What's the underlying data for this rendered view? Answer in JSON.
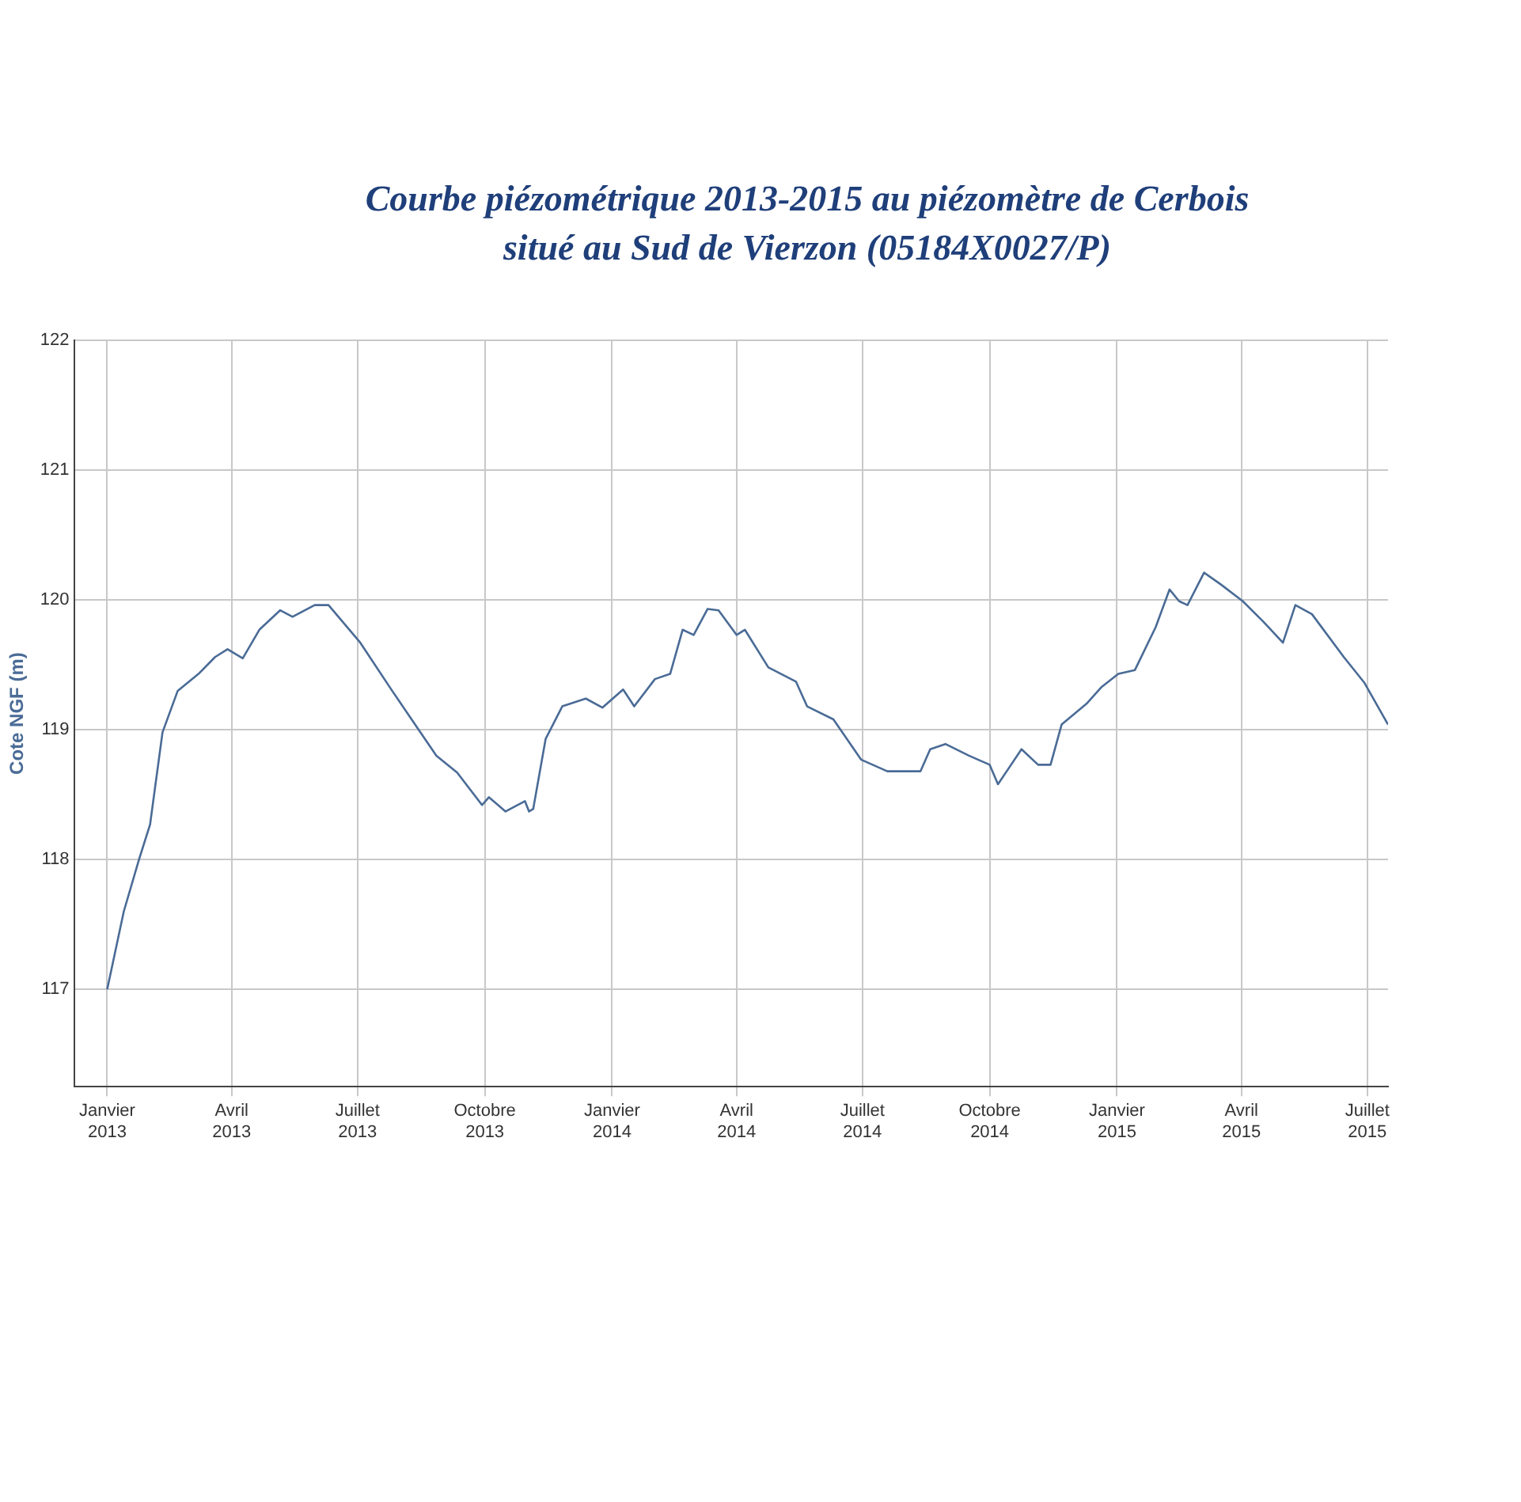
{
  "chart_data": {
    "type": "line",
    "title": "Courbe piézométrique 2013-2015 au piézomètre de Cerbois\nsitué au Sud de Vierzon (05184X0027/P)",
    "ylabel": "Cote NGF (m)",
    "x": [
      "2013-01-01",
      "2013-01-13",
      "2013-01-24",
      "2013-02-01",
      "2013-02-10",
      "2013-02-21",
      "2013-03-08",
      "2013-03-20",
      "2013-03-29",
      "2013-04-09",
      "2013-04-21",
      "2013-05-06",
      "2013-05-15",
      "2013-05-31",
      "2013-06-10",
      "2013-07-03",
      "2013-07-26",
      "2013-08-11",
      "2013-08-27",
      "2013-09-11",
      "2013-09-29",
      "2013-10-04",
      "2013-10-16",
      "2013-10-30",
      "2013-11-02",
      "2013-11-05",
      "2013-11-14",
      "2013-11-26",
      "2013-12-13",
      "2013-12-25",
      "2014-01-09",
      "2014-01-17",
      "2014-02-01",
      "2014-02-12",
      "2014-02-21",
      "2014-03-01",
      "2014-03-11",
      "2014-03-19",
      "2014-04-01",
      "2014-04-07",
      "2014-04-24",
      "2014-05-14",
      "2014-05-22",
      "2014-06-10",
      "2014-06-30",
      "2014-07-19",
      "2014-08-12",
      "2014-08-19",
      "2014-08-30",
      "2014-09-16",
      "2014-10-01",
      "2014-10-07",
      "2014-10-24",
      "2014-11-05",
      "2014-11-14",
      "2014-11-22",
      "2014-12-10",
      "2014-12-21",
      "2015-01-02",
      "2015-01-14",
      "2015-01-29",
      "2015-02-08",
      "2015-02-15",
      "2015-02-21",
      "2015-03-05",
      "2015-03-17",
      "2015-04-02",
      "2015-04-17",
      "2015-05-01",
      "2015-05-10",
      "2015-05-22",
      "2015-06-14",
      "2015-06-29",
      "2015-07-16"
    ],
    "series": [
      {
        "color": "#4a6b96",
        "values": [
          117.0,
          117.6,
          118.0,
          118.27,
          118.98,
          119.3,
          119.43,
          119.56,
          119.62,
          119.55,
          119.77,
          119.92,
          119.87,
          119.96,
          119.96,
          119.67,
          119.3,
          119.05,
          118.8,
          118.67,
          118.42,
          118.48,
          118.37,
          118.45,
          118.37,
          118.39,
          118.93,
          119.18,
          119.24,
          119.17,
          119.31,
          119.18,
          119.39,
          119.43,
          119.77,
          119.73,
          119.93,
          119.92,
          119.73,
          119.77,
          119.48,
          119.37,
          119.18,
          119.08,
          118.77,
          118.68,
          118.68,
          118.85,
          118.89,
          118.8,
          118.73,
          118.58,
          118.85,
          118.73,
          118.73,
          119.04,
          119.2,
          119.33,
          119.43,
          119.46,
          119.79,
          120.08,
          119.99,
          119.96,
          120.21,
          120.12,
          119.99,
          119.83,
          119.67,
          119.96,
          119.89,
          119.56,
          119.36,
          119.04
        ]
      }
    ],
    "xlim": [
      "2012-12-08",
      "2015-07-16"
    ],
    "xticks": [
      {
        "value": "2013-01-01",
        "label": "Janvier 2013"
      },
      {
        "value": "2013-04-01",
        "label": "Avril 2013"
      },
      {
        "value": "2013-07-01",
        "label": "Juillet 2013"
      },
      {
        "value": "2013-10-01",
        "label": "Octobre 2013"
      },
      {
        "value": "2014-01-01",
        "label": "Janvier 2014"
      },
      {
        "value": "2014-04-01",
        "label": "Avril 2014"
      },
      {
        "value": "2014-07-01",
        "label": "Juillet 2014"
      },
      {
        "value": "2014-10-01",
        "label": "Octobre 2014"
      },
      {
        "value": "2015-01-01",
        "label": "Janvier 2015"
      },
      {
        "value": "2015-04-01",
        "label": "Avril 2015"
      },
      {
        "value": "2015-07-01",
        "label": "Juillet 2015"
      }
    ],
    "ylim": [
      116.25,
      122
    ],
    "yticks": [
      117,
      118,
      119,
      120,
      121,
      122
    ],
    "grid": true,
    "legend": false,
    "marker": "none",
    "line_style": "solid"
  }
}
